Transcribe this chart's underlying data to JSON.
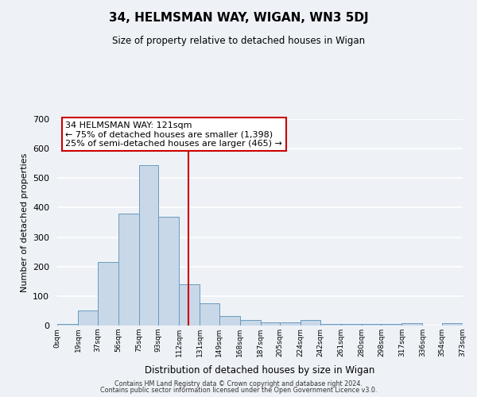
{
  "title": "34, HELMSMAN WAY, WIGAN, WN3 5DJ",
  "subtitle": "Size of property relative to detached houses in Wigan",
  "xlabel": "Distribution of detached houses by size in Wigan",
  "ylabel": "Number of detached properties",
  "bin_edges": [
    0,
    19,
    37,
    56,
    75,
    93,
    112,
    131,
    149,
    168,
    187,
    205,
    224,
    242,
    261,
    280,
    298,
    317,
    336,
    354,
    373
  ],
  "bar_heights": [
    5,
    52,
    215,
    380,
    545,
    370,
    140,
    75,
    33,
    20,
    10,
    10,
    20,
    5,
    5,
    5,
    5,
    8,
    0,
    8
  ],
  "bar_color": "#c8d8e8",
  "bar_edge_color": "#6a9abf",
  "property_size": 121,
  "vline_color": "#cc0000",
  "annotation_line1": "34 HELMSMAN WAY: 121sqm",
  "annotation_line2": "← 75% of detached houses are smaller (1,398)",
  "annotation_line3": "25% of semi-detached houses are larger (465) →",
  "annotation_box_color": "#ffffff",
  "annotation_box_edge_color": "#cc0000",
  "ylim": [
    0,
    700
  ],
  "yticks": [
    0,
    100,
    200,
    300,
    400,
    500,
    600,
    700
  ],
  "tick_labels": [
    "0sqm",
    "19sqm",
    "37sqm",
    "56sqm",
    "75sqm",
    "93sqm",
    "112sqm",
    "131sqm",
    "149sqm",
    "168sqm",
    "187sqm",
    "205sqm",
    "224sqm",
    "242sqm",
    "261sqm",
    "280sqm",
    "298sqm",
    "317sqm",
    "336sqm",
    "354sqm",
    "373sqm"
  ],
  "footer1": "Contains HM Land Registry data © Crown copyright and database right 2024.",
  "footer2": "Contains public sector information licensed under the Open Government Licence v3.0.",
  "bg_color": "#eef2f7",
  "grid_color": "#ffffff",
  "title_fontsize": 11,
  "subtitle_fontsize": 8.5
}
